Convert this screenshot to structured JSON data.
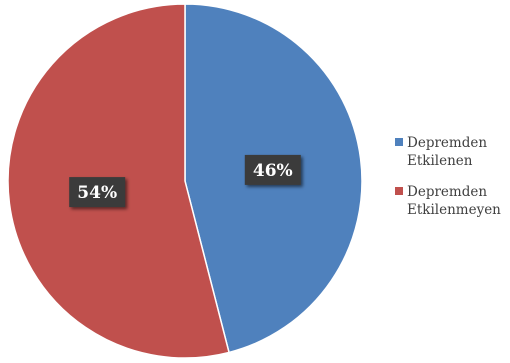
{
  "chart_data": {
    "type": "pie",
    "categories": [
      "Depremden Etkilenen",
      "Depremden Etkilenmeyen"
    ],
    "values": [
      46,
      54
    ],
    "data_labels": [
      "46%",
      "54%"
    ],
    "colors": [
      "#4F81BD",
      "#C0504D"
    ],
    "legend": {
      "placement": "right",
      "entries": [
        {
          "line1": "Depremden",
          "line2": "Etkilenen"
        },
        {
          "line1": "Depremden",
          "line2": "Etkilenmeyen"
        }
      ]
    },
    "start_angle": "12 o'clock",
    "direction": "clockwise"
  }
}
